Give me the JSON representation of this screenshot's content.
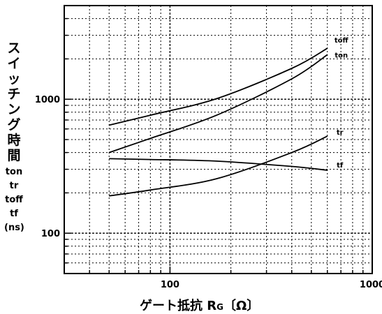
{
  "chart_data": {
    "type": "line",
    "x_scale": "log",
    "y_scale": "log",
    "xlim": [
      30,
      1000
    ],
    "ylim": [
      50,
      5000
    ],
    "grid": true,
    "xticks": [
      {
        "value": 100,
        "label": "100"
      },
      {
        "value": 1000,
        "label": "1000"
      }
    ],
    "yticks": [
      {
        "value": 100,
        "label": "100"
      },
      {
        "value": 1000,
        "label": "1000"
      }
    ],
    "xlabel_parts": [
      "ゲート抵抗 R",
      "G",
      "〔Ω〕"
    ],
    "ylabel_lines": [
      "ス",
      "イ",
      "ッ",
      "チ",
      "ン",
      "グ",
      "時",
      "間"
    ],
    "ylabel_symbols": [
      "ton",
      "tr",
      "toff",
      "tf",
      "(ns)"
    ],
    "series": [
      {
        "name": "toff",
        "x": [
          50,
          80,
          170,
          400,
          600
        ],
        "y": [
          640,
          760,
          1010,
          1700,
          2400
        ]
      },
      {
        "name": "ton",
        "x": [
          50,
          80,
          170,
          400,
          600
        ],
        "y": [
          400,
          510,
          760,
          1420,
          2150
        ]
      },
      {
        "name": "tr",
        "x": [
          50,
          80,
          170,
          400,
          600
        ],
        "y": [
          190,
          210,
          255,
          400,
          530
        ]
      },
      {
        "name": "tf",
        "x": [
          50,
          80,
          170,
          400,
          600
        ],
        "y": [
          360,
          355,
          345,
          315,
          295
        ]
      }
    ]
  }
}
